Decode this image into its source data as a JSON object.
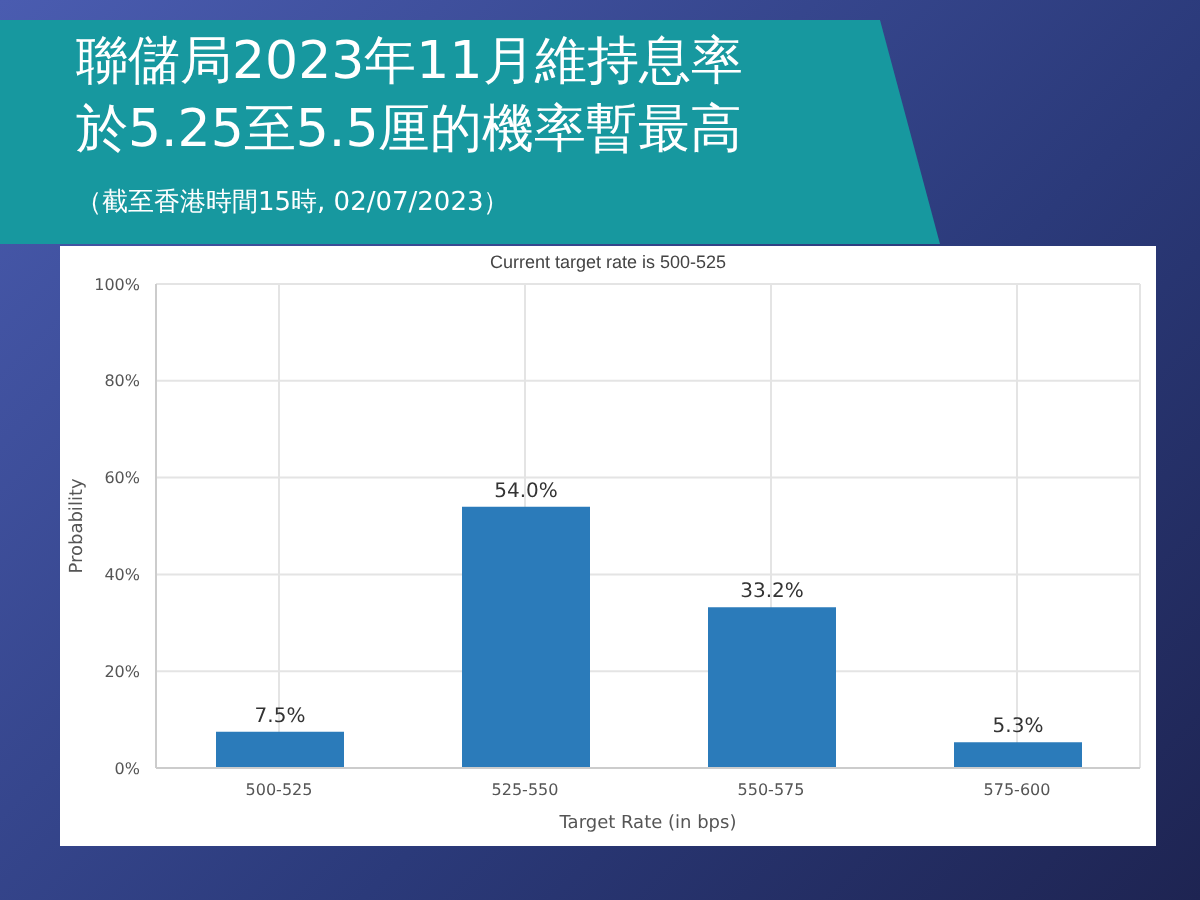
{
  "chart_data": {
    "type": "bar",
    "title": "聯儲局2023年11月維持息率於5.25至5.5厘的機率暫最高",
    "subtitle": "Current target rate is 500-525",
    "annotations": [
      "（截至香港時間15時, 02/07/2023）"
    ],
    "xlabel": "Target Rate (in bps)",
    "ylabel": "Probability",
    "categories": [
      "500-525",
      "525-550",
      "550-575",
      "575-600"
    ],
    "values": [
      7.5,
      54.0,
      33.2,
      5.3
    ],
    "value_labels": [
      "7.5%",
      "54.0%",
      "33.2%",
      "5.3%"
    ],
    "color": "#2b7bba",
    "ylim": [
      0,
      100
    ],
    "yticks": [
      {
        "value": 0,
        "label": "0%"
      },
      {
        "value": 20,
        "label": "20%"
      },
      {
        "value": 40,
        "label": "40%"
      },
      {
        "value": 60,
        "label": "60%"
      },
      {
        "value": 80,
        "label": "80%"
      },
      {
        "value": 100,
        "label": "100%"
      }
    ],
    "grid": true,
    "legend": false
  }
}
